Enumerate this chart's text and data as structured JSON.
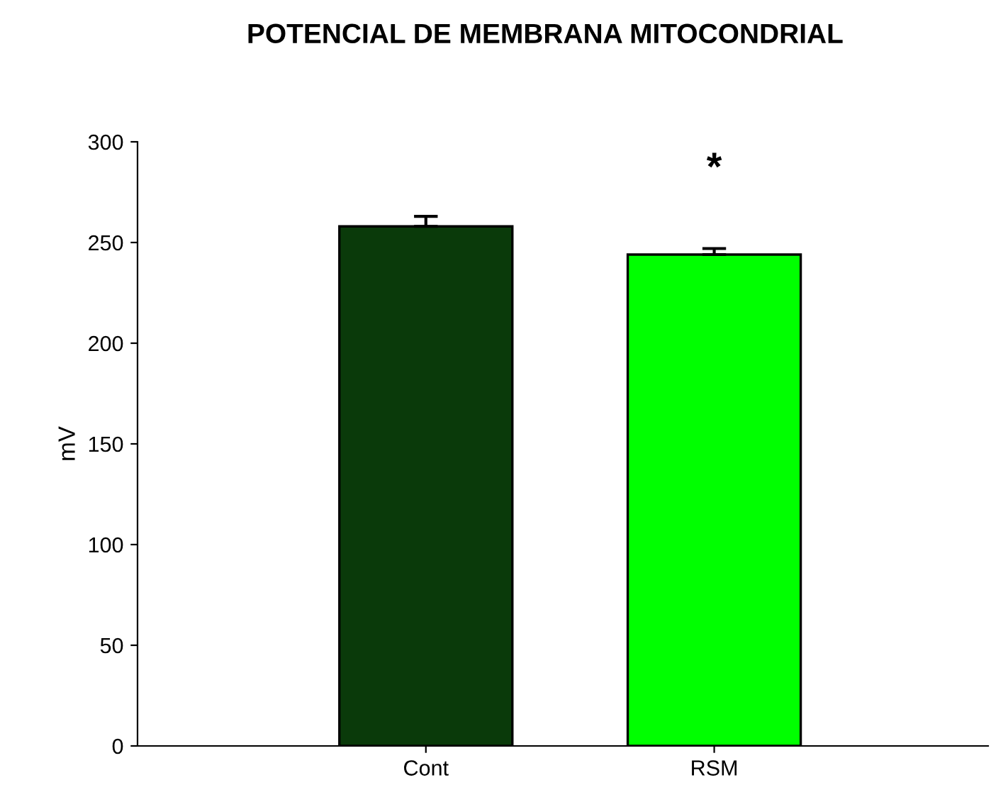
{
  "chart_data": {
    "type": "bar",
    "title": "POTENCIAL DE MEMBRANA MITOCONDRIAL",
    "ylabel": "mV",
    "categories": [
      "Cont",
      "RSM"
    ],
    "values": [
      258,
      244
    ],
    "errors": [
      5,
      3
    ],
    "colors": [
      "#0a3a0a",
      "#00ff00"
    ],
    "ylim": [
      0,
      300
    ],
    "yticks": [
      0,
      50,
      100,
      150,
      200,
      250,
      300
    ],
    "grid": false,
    "legend": false,
    "annotations": [
      "*"
    ]
  }
}
